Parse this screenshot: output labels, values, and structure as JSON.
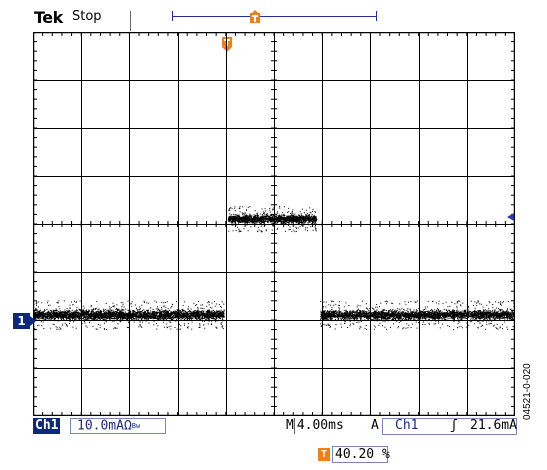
{
  "header": {
    "brand": "Tek",
    "acquisition_state": "Stop"
  },
  "record_view": {
    "trigger_marker_icon": "trigger-position-icon",
    "trigger_marker_glyph": "T"
  },
  "screen": {
    "divisions_horizontal": 10,
    "divisions_vertical": 8,
    "grid_color": "#000000",
    "trace_color": "#000000",
    "channel_marker": "1",
    "trigger_level_marker_icon": "trigger-level-arrow-icon"
  },
  "status": {
    "channel_label": "Ch1",
    "channel_scale": "10.0mAΩ",
    "bandwidth_mark": "Bw",
    "timebase_prefix": "M",
    "timebase_value": "4.00ms",
    "trigger_mode": "A",
    "trigger_source": "Ch1",
    "trigger_slope": "ʃ",
    "trigger_level": "21.6mA"
  },
  "horizontal_position": {
    "icon": "T",
    "value": "40.20 %"
  },
  "figure_id": "04521-0-020",
  "colors": {
    "accent_orange": "#f07f1a",
    "channel_blue": "#0d2a7a"
  }
}
